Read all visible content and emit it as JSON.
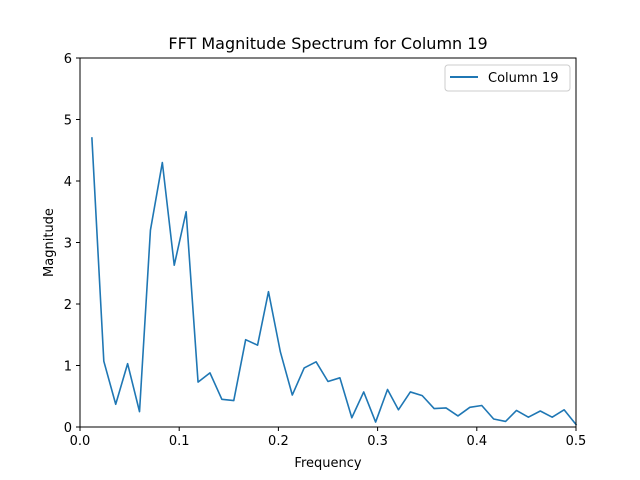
{
  "chart_data": {
    "type": "line",
    "title": "FFT Magnitude Spectrum for Column 19",
    "xlabel": "Frequency",
    "ylabel": "Magnitude",
    "xlim": [
      0,
      0.5
    ],
    "ylim": [
      0,
      6
    ],
    "xticks": [
      "0.0",
      "0.1",
      "0.2",
      "0.3",
      "0.4",
      "0.5"
    ],
    "yticks": [
      "0",
      "1",
      "2",
      "3",
      "4",
      "5",
      "6"
    ],
    "grid": false,
    "legend_position": "top-right",
    "series": [
      {
        "name": "Column 19",
        "color": "#1f77b4",
        "x": [
          0.012,
          0.024,
          0.036,
          0.048,
          0.06,
          0.071,
          0.083,
          0.095,
          0.107,
          0.119,
          0.131,
          0.143,
          0.155,
          0.167,
          0.179,
          0.19,
          0.202,
          0.214,
          0.226,
          0.238,
          0.25,
          0.262,
          0.274,
          0.286,
          0.298,
          0.31,
          0.321,
          0.333,
          0.345,
          0.357,
          0.369,
          0.381,
          0.393,
          0.405,
          0.417,
          0.429,
          0.44,
          0.452,
          0.464,
          0.476,
          0.488,
          0.5
        ],
        "y": [
          4.7,
          1.07,
          0.37,
          1.03,
          0.25,
          3.2,
          4.3,
          2.63,
          3.5,
          0.73,
          0.88,
          0.45,
          0.43,
          1.42,
          1.33,
          2.2,
          1.22,
          0.52,
          0.96,
          1.06,
          0.74,
          0.8,
          0.15,
          0.57,
          0.08,
          0.61,
          0.28,
          0.57,
          0.51,
          0.3,
          0.31,
          0.18,
          0.32,
          0.35,
          0.13,
          0.09,
          0.27,
          0.16,
          0.26,
          0.16,
          0.28,
          0.04
        ]
      }
    ]
  }
}
